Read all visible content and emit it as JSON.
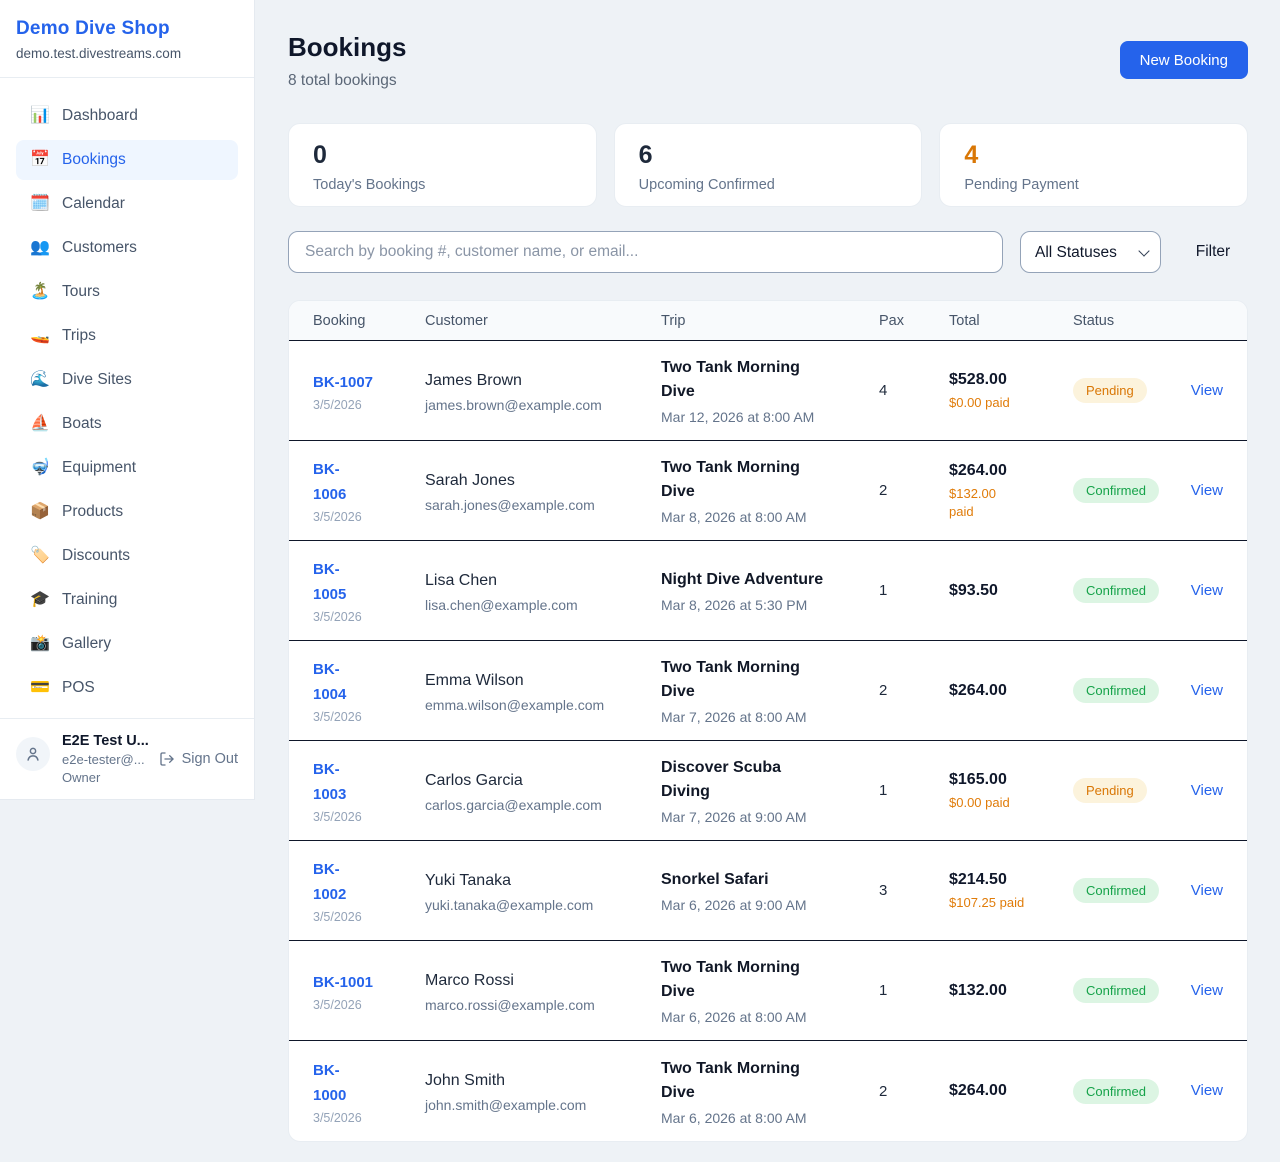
{
  "colors": {
    "accent_blue": "#2563EB",
    "pending_text": "#D97706",
    "pending_bg": "#FCF3DC",
    "confirmed_text": "#16A34A",
    "confirmed_bg": "#DCF5E3",
    "paid_orange": "#E07C0A"
  },
  "sidebar": {
    "brand": "Demo Dive Shop",
    "domain": "demo.test.divestreams.com",
    "items": [
      {
        "icon": "📊",
        "icon_name": "bar-chart-icon",
        "label": "Dashboard",
        "active": false
      },
      {
        "icon": "📅",
        "icon_name": "calendar-icon",
        "label": "Bookings",
        "active": true
      },
      {
        "icon": "🗓️",
        "icon_name": "spiral-calendar-icon",
        "label": "Calendar",
        "active": false
      },
      {
        "icon": "👥",
        "icon_name": "people-icon",
        "label": "Customers",
        "active": false
      },
      {
        "icon": "🏝️",
        "icon_name": "island-icon",
        "label": "Tours",
        "active": false
      },
      {
        "icon": "🚤",
        "icon_name": "speedboat-icon",
        "label": "Trips",
        "active": false
      },
      {
        "icon": "🌊",
        "icon_name": "wave-icon",
        "label": "Dive Sites",
        "active": false
      },
      {
        "icon": "⛵",
        "icon_name": "sailboat-icon",
        "label": "Boats",
        "active": false
      },
      {
        "icon": "🤿",
        "icon_name": "diving-mask-icon",
        "label": "Equipment",
        "active": false
      },
      {
        "icon": "📦",
        "icon_name": "package-icon",
        "label": "Products",
        "active": false
      },
      {
        "icon": "🏷️",
        "icon_name": "tag-icon",
        "label": "Discounts",
        "active": false
      },
      {
        "icon": "🎓",
        "icon_name": "graduation-cap-icon",
        "label": "Training",
        "active": false
      },
      {
        "icon": "📸",
        "icon_name": "camera-icon",
        "label": "Gallery",
        "active": false
      },
      {
        "icon": "💳",
        "icon_name": "credit-card-icon",
        "label": "POS",
        "active": false
      }
    ],
    "user": {
      "name": "E2E Test U...",
      "email": "e2e-tester@...",
      "role": "Owner",
      "sign_out": "Sign Out"
    }
  },
  "header": {
    "title": "Bookings",
    "subtitle": "8 total bookings",
    "new_booking_label": "New Booking"
  },
  "stats": [
    {
      "value": "0",
      "label": "Today's Bookings",
      "color": "#1E293B"
    },
    {
      "value": "6",
      "label": "Upcoming Confirmed",
      "color": "#1E293B"
    },
    {
      "value": "4",
      "label": "Pending Payment",
      "color": "#D97706"
    }
  ],
  "filters": {
    "search_placeholder": "Search by booking #, customer name, or email...",
    "status_selected": "All Statuses",
    "filter_label": "Filter"
  },
  "table": {
    "columns": [
      "Booking",
      "Customer",
      "Trip",
      "Pax",
      "Total",
      "Status",
      ""
    ],
    "status_styles": {
      "Pending": {
        "bg": "#FCF3DC",
        "color": "#D97706"
      },
      "Confirmed": {
        "bg": "#DCF5E3",
        "color": "#16A34A"
      }
    },
    "rows": [
      {
        "id": "BK-1007",
        "id_lines": [
          "BK-1007"
        ],
        "date": "3/5/2026",
        "customer": "James Brown",
        "email": "james.brown@example.com",
        "trip": "Two Tank Morning Dive",
        "trip_lines": [
          "Two Tank Morning",
          "Dive"
        ],
        "trip_time": "Mar 12, 2026 at 8:00 AM",
        "pax": "4",
        "total": "$528.00",
        "paid": "$0.00 paid",
        "paid_lines": [
          "$0.00 paid"
        ],
        "status": "Pending",
        "action": "View"
      },
      {
        "id": "BK-1006",
        "id_lines": [
          "BK-",
          "1006"
        ],
        "date": "3/5/2026",
        "customer": "Sarah Jones",
        "email": "sarah.jones@example.com",
        "trip": "Two Tank Morning Dive",
        "trip_lines": [
          "Two Tank Morning",
          "Dive"
        ],
        "trip_time": "Mar 8, 2026 at 8:00 AM",
        "pax": "2",
        "total": "$264.00",
        "paid": "$132.00 paid",
        "paid_lines": [
          "$132.00",
          "paid"
        ],
        "status": "Confirmed",
        "action": "View"
      },
      {
        "id": "BK-1005",
        "id_lines": [
          "BK-",
          "1005"
        ],
        "date": "3/5/2026",
        "customer": "Lisa Chen",
        "email": "lisa.chen@example.com",
        "trip": "Night Dive Adventure",
        "trip_lines": [
          "Night Dive Adventure"
        ],
        "trip_time": "Mar 8, 2026 at 5:30 PM",
        "pax": "1",
        "total": "$93.50",
        "paid": "",
        "paid_lines": [],
        "status": "Confirmed",
        "action": "View"
      },
      {
        "id": "BK-1004",
        "id_lines": [
          "BK-",
          "1004"
        ],
        "date": "3/5/2026",
        "customer": "Emma Wilson",
        "email": "emma.wilson@example.com",
        "trip": "Two Tank Morning Dive",
        "trip_lines": [
          "Two Tank Morning",
          "Dive"
        ],
        "trip_time": "Mar 7, 2026 at 8:00 AM",
        "pax": "2",
        "total": "$264.00",
        "paid": "",
        "paid_lines": [],
        "status": "Confirmed",
        "action": "View"
      },
      {
        "id": "BK-1003",
        "id_lines": [
          "BK-",
          "1003"
        ],
        "date": "3/5/2026",
        "customer": "Carlos Garcia",
        "email": "carlos.garcia@example.com",
        "trip": "Discover Scuba Diving",
        "trip_lines": [
          "Discover Scuba",
          "Diving"
        ],
        "trip_time": "Mar 7, 2026 at 9:00 AM",
        "pax": "1",
        "total": "$165.00",
        "paid": "$0.00 paid",
        "paid_lines": [
          "$0.00 paid"
        ],
        "status": "Pending",
        "action": "View"
      },
      {
        "id": "BK-1002",
        "id_lines": [
          "BK-",
          "1002"
        ],
        "date": "3/5/2026",
        "customer": "Yuki Tanaka",
        "email": "yuki.tanaka@example.com",
        "trip": "Snorkel Safari",
        "trip_lines": [
          "Snorkel Safari"
        ],
        "trip_time": "Mar 6, 2026 at 9:00 AM",
        "pax": "3",
        "total": "$214.50",
        "paid": "$107.25 paid",
        "paid_lines": [
          "$107.25 paid"
        ],
        "status": "Confirmed",
        "action": "View"
      },
      {
        "id": "BK-1001",
        "id_lines": [
          "BK-1001"
        ],
        "date": "3/5/2026",
        "customer": "Marco Rossi",
        "email": "marco.rossi@example.com",
        "trip": "Two Tank Morning Dive",
        "trip_lines": [
          "Two Tank Morning",
          "Dive"
        ],
        "trip_time": "Mar 6, 2026 at 8:00 AM",
        "pax": "1",
        "total": "$132.00",
        "paid": "",
        "paid_lines": [],
        "status": "Confirmed",
        "action": "View"
      },
      {
        "id": "BK-1000",
        "id_lines": [
          "BK-",
          "1000"
        ],
        "date": "3/5/2026",
        "customer": "John Smith",
        "email": "john.smith@example.com",
        "trip": "Two Tank Morning Dive",
        "trip_lines": [
          "Two Tank Morning",
          "Dive"
        ],
        "trip_time": "Mar 6, 2026 at 8:00 AM",
        "pax": "2",
        "total": "$264.00",
        "paid": "",
        "paid_lines": [],
        "status": "Confirmed",
        "action": "View"
      }
    ]
  }
}
